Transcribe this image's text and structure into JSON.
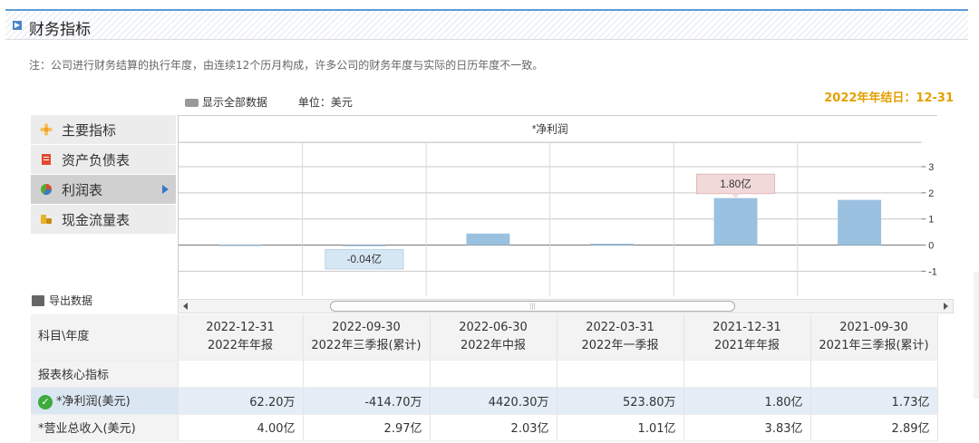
{
  "title": "财务指标",
  "note": "注：公司进行财务结算的执行年度，由连续12个历月构成，许多公司的财务年度与实际的日历年度不一致。",
  "toolbar": {
    "show_all": "显示全部数据",
    "unit": "单位：美元",
    "year_end": "2022年年结日：12-31"
  },
  "menu": {
    "items": [
      {
        "label": "主要指标",
        "icon": "flower-icon",
        "color": "#f0a030"
      },
      {
        "label": "资产负债表",
        "icon": "document-icon",
        "color": "#e04a2e"
      },
      {
        "label": "利润表",
        "icon": "pie-chart-icon",
        "color": "#5aa832"
      },
      {
        "label": "现金流量表",
        "icon": "coins-icon",
        "color": "#e8b12a"
      }
    ],
    "active_index": 2
  },
  "export_label": "导出数据",
  "chart_data": {
    "type": "bar",
    "title": "*净利润",
    "categories": [
      "2022-12-31",
      "2022-09-30",
      "2022-06-30",
      "2022-03-31",
      "2021-12-31",
      "2021-09-30"
    ],
    "values": [
      0.00622,
      -0.04147,
      0.44203,
      0.05238,
      1.8,
      1.73
    ],
    "yticks": [
      3,
      2,
      1,
      0,
      -1
    ],
    "ylim": [
      -1.6,
      3.3
    ],
    "tooltips": [
      {
        "index": 4,
        "text": "1.80亿"
      },
      {
        "index": 1,
        "text": "-0.04亿"
      }
    ],
    "bar_color": "#9ac1e0",
    "grid": true
  },
  "table": {
    "corner": "科目\\年度",
    "columns": [
      {
        "date": "2022-12-31",
        "period": "2022年年报"
      },
      {
        "date": "2022-09-30",
        "period": "2022年三季报(累计)"
      },
      {
        "date": "2022-06-30",
        "period": "2022年中报"
      },
      {
        "date": "2022-03-31",
        "period": "2022年一季报"
      },
      {
        "date": "2021-12-31",
        "period": "2021年年报"
      },
      {
        "date": "2021-09-30",
        "period": "2021年三季报(累计)"
      }
    ],
    "section": "报表核心指标",
    "rows": [
      {
        "label": "*净利润(美元)",
        "checked": true,
        "values": [
          "62.20万",
          "-414.70万",
          "4420.30万",
          "523.80万",
          "1.80亿",
          "1.73亿"
        ]
      },
      {
        "label": "*营业总收入(美元)",
        "checked": false,
        "values": [
          "4.00亿",
          "2.97亿",
          "2.03亿",
          "1.01亿",
          "3.83亿",
          "2.89亿"
        ]
      }
    ]
  }
}
